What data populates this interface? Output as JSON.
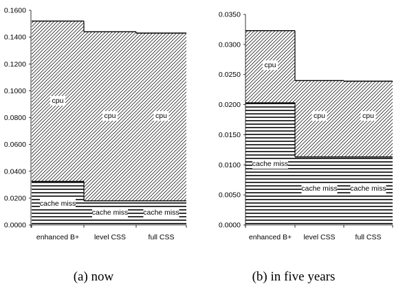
{
  "chart_data": [
    {
      "type": "bar",
      "stacked": true,
      "caption": "(a) now",
      "categories": [
        "enhanced B+",
        "level CSS",
        "full CSS"
      ],
      "series": [
        {
          "name": "cache miss",
          "values": [
            0.0325,
            0.018,
            0.018
          ]
        },
        {
          "name": "cpu",
          "values": [
            0.1195,
            0.126,
            0.125
          ]
        }
      ],
      "segment_labels": [
        "cache miss",
        "cpu"
      ],
      "ylim": [
        0,
        0.16
      ],
      "yticks": [
        "0.0000",
        "0.0200",
        "0.0400",
        "0.0600",
        "0.0800",
        "0.1000",
        "0.1200",
        "0.1400",
        "0.1600"
      ],
      "grid": false,
      "legend": "none"
    },
    {
      "type": "bar",
      "stacked": true,
      "caption": "(b) in five years",
      "categories": [
        "enhanced B+",
        "level CSS",
        "full CSS"
      ],
      "series": [
        {
          "name": "cache miss",
          "values": [
            0.0203,
            0.0113,
            0.0113
          ]
        },
        {
          "name": "cpu",
          "values": [
            0.012,
            0.0127,
            0.0126
          ]
        }
      ],
      "segment_labels": [
        "cache miss",
        "cpu"
      ],
      "ylim": [
        0,
        0.035
      ],
      "yticks": [
        "0.0000",
        "0.0050",
        "0.0100",
        "0.0150",
        "0.0200",
        "0.0250",
        "0.0300",
        "0.0350"
      ],
      "grid": false,
      "legend": "none"
    }
  ]
}
